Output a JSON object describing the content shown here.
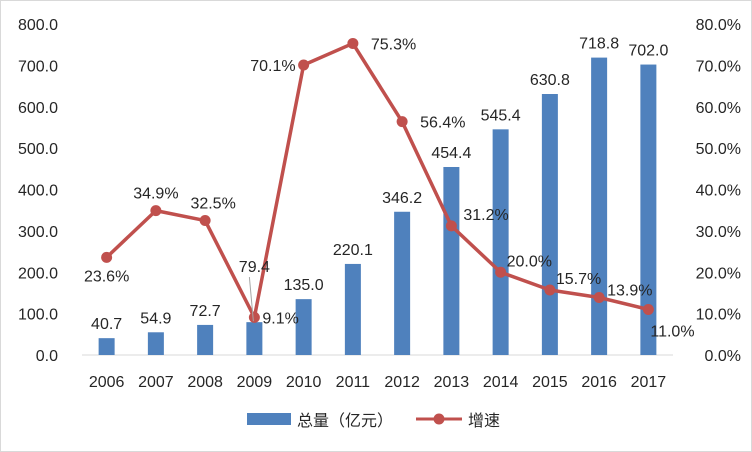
{
  "chart_data": {
    "type": "bar",
    "categories": [
      "2006",
      "2007",
      "2008",
      "2009",
      "2010",
      "2011",
      "2012",
      "2013",
      "2014",
      "2015",
      "2016",
      "2017"
    ],
    "series": [
      {
        "name": "总量（亿元）",
        "type": "bar",
        "axis": "left",
        "values": [
          40.7,
          54.9,
          72.7,
          79.4,
          135.0,
          220.1,
          346.2,
          454.4,
          545.4,
          630.8,
          718.8,
          702.0
        ],
        "labels": [
          "40.7",
          "54.9",
          "72.7",
          "79.4",
          "135.0",
          "220.1",
          "346.2",
          "454.4",
          "545.4",
          "630.8",
          "718.8",
          "702.0"
        ],
        "color": "#4f81bd"
      },
      {
        "name": "增速",
        "type": "line",
        "axis": "right",
        "values": [
          23.6,
          34.9,
          32.5,
          9.1,
          70.1,
          75.3,
          56.4,
          31.2,
          20.0,
          15.7,
          13.9,
          11.0
        ],
        "labels": [
          "23.6%",
          "34.9%",
          "32.5%",
          "9.1%",
          "70.1%",
          "75.3%",
          "56.4%",
          "31.2%",
          "20.0%",
          "15.7%",
          "13.9%",
          "11.0%"
        ],
        "color": "#c0504d"
      }
    ],
    "y_left": {
      "range": [
        0,
        800
      ],
      "ticks": [
        "0.0",
        "100.0",
        "200.0",
        "300.0",
        "400.0",
        "500.0",
        "600.0",
        "700.0",
        "800.0"
      ]
    },
    "y_right": {
      "range": [
        0,
        80
      ],
      "ticks": [
        "0.0%",
        "10.0%",
        "20.0%",
        "30.0%",
        "40.0%",
        "50.0%",
        "60.0%",
        "70.0%",
        "80.0%"
      ]
    },
    "title": "",
    "xlabel": "",
    "ylabel": "",
    "grid": false,
    "legend": "bottom",
    "colors": {
      "bar": "#4f81bd",
      "line": "#c0504d",
      "axis": "#d9d9d9",
      "text": "#262626"
    }
  }
}
